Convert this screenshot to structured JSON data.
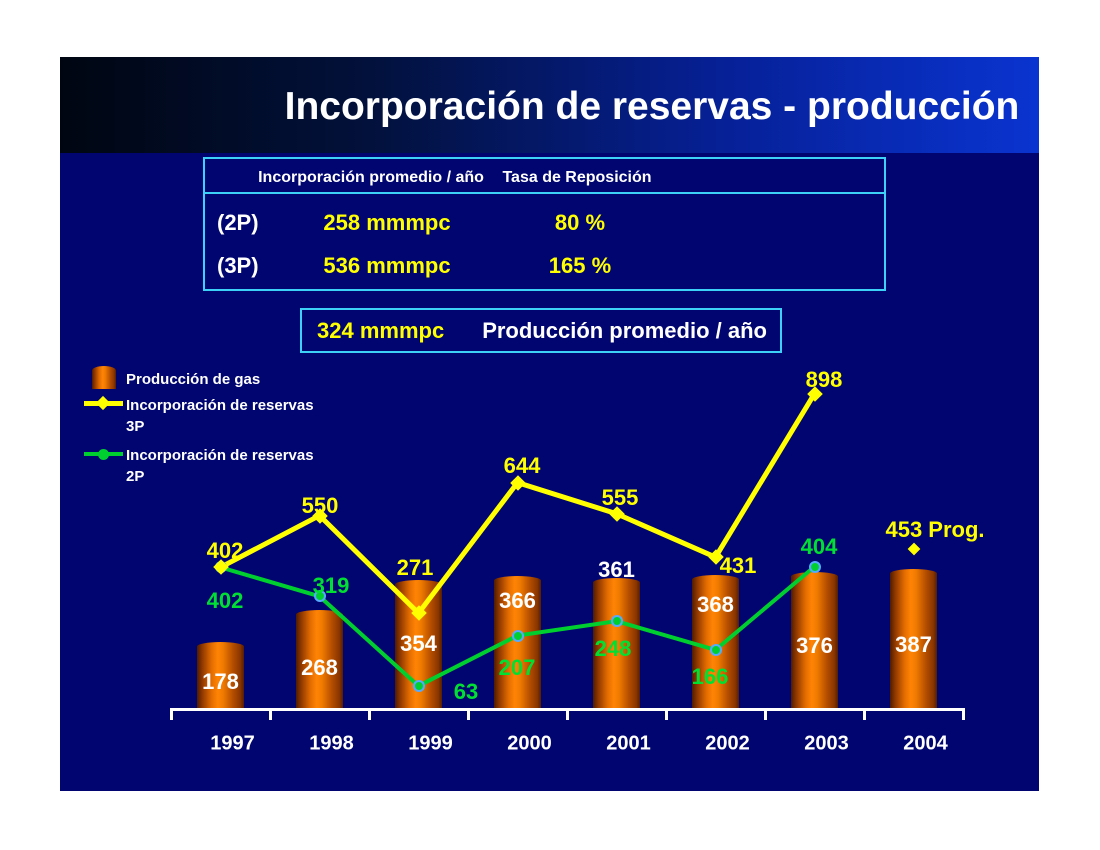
{
  "slide": {
    "title": "Incorporación de reservas - producción",
    "summary_table": {
      "col1_header": "Incorporación promedio / año",
      "col2_header": "Tasa de Reposición",
      "rows": [
        {
          "label": "(2P)",
          "incorporacion": "258 mmmpc",
          "tasa": "80 %"
        },
        {
          "label": "(3P)",
          "incorporacion": "536 mmmpc",
          "tasa": "165 %"
        }
      ]
    },
    "production_box": {
      "value": "324 mmmpc",
      "label": "Producción promedio / año"
    },
    "legend": {
      "items": [
        {
          "label": "Producción de gas"
        },
        {
          "label": "Incorporación de reservas",
          "sublabel": "3P"
        },
        {
          "label": "Incorporación de reservas",
          "sublabel": "2P"
        }
      ]
    }
  },
  "colors": {
    "slide_background": "#000570",
    "header_gradient_start": "#000611",
    "header_gradient_end": "#0a34d0",
    "box_border_cyan": "#3ed1f7",
    "bar_orange": "#f57d00",
    "line_3p_yellow": "#ffff00",
    "line_2p_green": "#00d02f",
    "marker_ring_blue": "#55aaff",
    "text_white": "#ffffff",
    "green_label": "#00e033"
  },
  "chart_data": {
    "type": "bar",
    "subtype": "bar+line combo",
    "categories": [
      "1997",
      "1998",
      "1999",
      "2000",
      "2001",
      "2002",
      "2003",
      "2004"
    ],
    "series": [
      {
        "name": "Producción de gas",
        "type": "bar",
        "color": "#f57d00",
        "label_color": "#ffffff",
        "values": [
          178,
          268,
          354,
          366,
          361,
          368,
          376,
          387
        ]
      },
      {
        "name": "Incorporación de reservas 3P",
        "type": "line",
        "marker": "diamond",
        "color": "#ffff00",
        "label_color": "#ffff00",
        "values": [
          402,
          550,
          271,
          644,
          555,
          431,
          898,
          null
        ]
      },
      {
        "name": "Incorporación de reservas 2P",
        "type": "line",
        "marker": "circle",
        "color": "#00d02f",
        "label_color": "#00e033",
        "values": [
          402,
          319,
          63,
          207,
          248,
          166,
          404,
          null
        ]
      }
    ],
    "annotations": [
      {
        "category": "2004",
        "series": "Incorporación de reservas 3P",
        "value": 453,
        "text": "453 Prog."
      }
    ],
    "ylim": [
      0,
      1000
    ],
    "y_axis_visible": false,
    "grid": false,
    "data_labels": true,
    "legend_position": "upper-left"
  }
}
